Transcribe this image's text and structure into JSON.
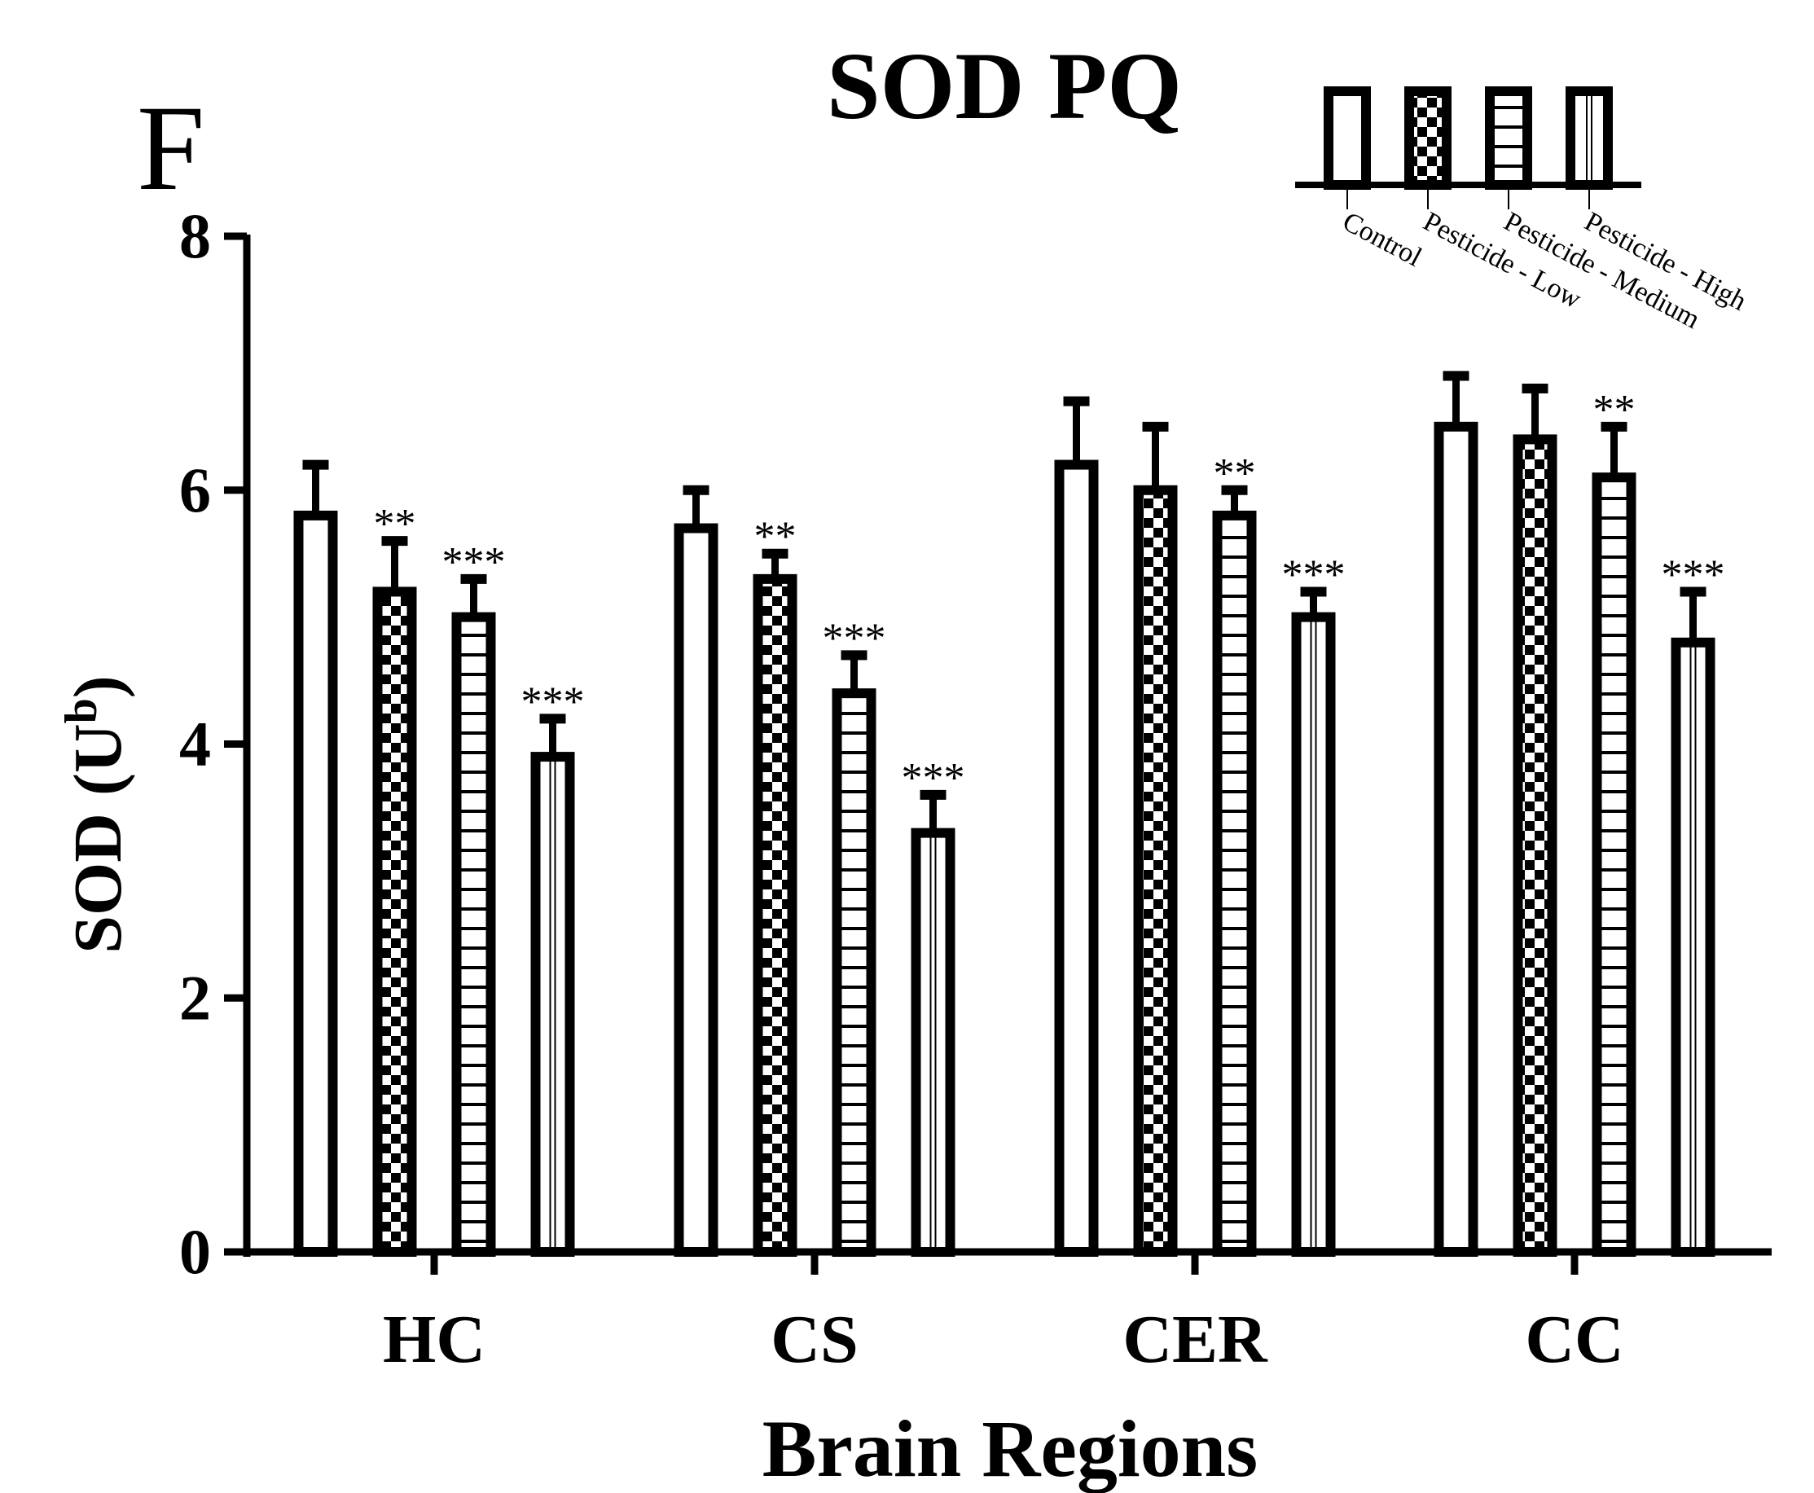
{
  "panel_label": "F",
  "chart_data": {
    "type": "bar",
    "title": "SOD PQ",
    "xlabel": "Brain Regions",
    "ylabel_main": "SOD (U",
    "ylabel_sup": "b",
    "ylabel_close": ")",
    "categories": [
      "HC",
      "CS",
      "CER",
      "CC"
    ],
    "ylim": [
      0,
      8
    ],
    "yticks": [
      "0",
      "2",
      "4",
      "6",
      "8"
    ],
    "series": [
      {
        "name": "Control",
        "pattern": "vertical-line",
        "values": [
          5.8,
          5.7,
          6.2,
          6.5
        ],
        "errors": [
          0.4,
          0.3,
          0.5,
          0.4
        ],
        "significance": [
          "",
          "",
          "",
          ""
        ]
      },
      {
        "name": "Pesticide - Low",
        "pattern": "checker",
        "values": [
          5.2,
          5.3,
          6.0,
          6.4
        ],
        "errors": [
          0.4,
          0.2,
          0.5,
          0.4
        ],
        "significance": [
          "**",
          "**",
          "",
          ""
        ]
      },
      {
        "name": "Pesticide - Medium",
        "pattern": "horizontal-stripes",
        "values": [
          5.0,
          4.4,
          5.8,
          6.1
        ],
        "errors": [
          0.3,
          0.3,
          0.2,
          0.4
        ],
        "significance": [
          "***",
          "***",
          "**",
          "**"
        ]
      },
      {
        "name": "Pesticide - High",
        "pattern": "double-vertical-line",
        "values": [
          3.9,
          3.3,
          5.0,
          4.8
        ],
        "errors": [
          0.3,
          0.3,
          0.2,
          0.4
        ],
        "significance": [
          "***",
          "***",
          "***",
          "***"
        ]
      }
    ],
    "grid": false,
    "legend_position": "top-right",
    "colors": {
      "ink": "#000000",
      "fill": "#ffffff"
    }
  }
}
